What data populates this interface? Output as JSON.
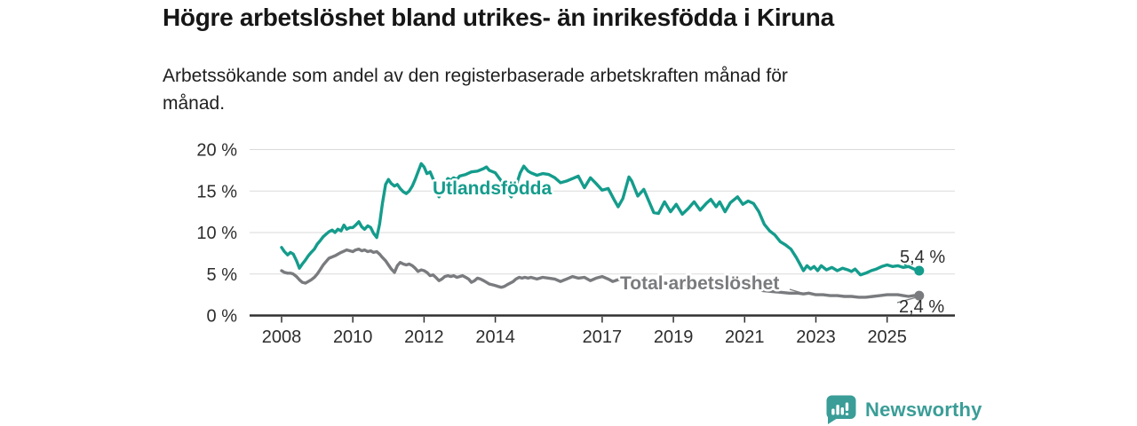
{
  "chart_data": {
    "type": "line",
    "title": "Högre arbetslöshet bland utrikes- än inrikesfödda i Kiruna",
    "subtitle_lines": [
      "Arbetssökande som andel av den registerbaserade arbetskraften månad för",
      "månad."
    ],
    "unit": "%",
    "x_range": [
      2008,
      2025.92
    ],
    "ylim": [
      0,
      20
    ],
    "grid": "horizontal-gridlines",
    "legend": "inline-labels-on-lines",
    "y_ticks": [
      {
        "value": 0,
        "label": "0 %"
      },
      {
        "value": 5,
        "label": "5 %"
      },
      {
        "value": 10,
        "label": "10 %"
      },
      {
        "value": 15,
        "label": "15 %"
      },
      {
        "value": 20,
        "label": "20 %"
      }
    ],
    "x_ticks": [
      {
        "value": 2008,
        "label": "2008"
      },
      {
        "value": 2010,
        "label": "2010"
      },
      {
        "value": 2012,
        "label": "2012"
      },
      {
        "value": 2014,
        "label": "2014"
      },
      {
        "value": 2017,
        "label": "2017"
      },
      {
        "value": 2019,
        "label": "2019"
      },
      {
        "value": 2021,
        "label": "2021"
      },
      {
        "value": 2023,
        "label": "2023"
      },
      {
        "value": 2025,
        "label": "2025"
      }
    ],
    "series": [
      {
        "name": "Utlandsfödda",
        "color": "#149c8c",
        "end_label": "5,4 %",
        "end_value": 5.4,
        "points": [
          [
            2008.0,
            8.2
          ],
          [
            2008.08,
            7.7
          ],
          [
            2008.17,
            7.3
          ],
          [
            2008.25,
            7.6
          ],
          [
            2008.33,
            7.4
          ],
          [
            2008.42,
            6.6
          ],
          [
            2008.5,
            5.7
          ],
          [
            2008.58,
            6.2
          ],
          [
            2008.67,
            6.7
          ],
          [
            2008.75,
            7.2
          ],
          [
            2008.83,
            7.6
          ],
          [
            2008.92,
            8.0
          ],
          [
            2009.0,
            8.6
          ],
          [
            2009.08,
            9.0
          ],
          [
            2009.17,
            9.5
          ],
          [
            2009.25,
            9.8
          ],
          [
            2009.33,
            10.1
          ],
          [
            2009.42,
            10.3
          ],
          [
            2009.5,
            10.0
          ],
          [
            2009.58,
            10.4
          ],
          [
            2009.67,
            10.2
          ],
          [
            2009.75,
            10.9
          ],
          [
            2009.83,
            10.4
          ],
          [
            2009.92,
            10.6
          ],
          [
            2010.0,
            10.6
          ],
          [
            2010.08,
            10.9
          ],
          [
            2010.17,
            11.3
          ],
          [
            2010.25,
            10.7
          ],
          [
            2010.33,
            10.4
          ],
          [
            2010.42,
            10.8
          ],
          [
            2010.5,
            10.6
          ],
          [
            2010.58,
            9.9
          ],
          [
            2010.67,
            9.4
          ],
          [
            2010.75,
            11.0
          ],
          [
            2010.83,
            13.5
          ],
          [
            2010.92,
            15.8
          ],
          [
            2011.0,
            16.4
          ],
          [
            2011.08,
            15.9
          ],
          [
            2011.17,
            15.6
          ],
          [
            2011.25,
            15.8
          ],
          [
            2011.33,
            15.3
          ],
          [
            2011.42,
            14.9
          ],
          [
            2011.5,
            14.7
          ],
          [
            2011.58,
            15.0
          ],
          [
            2011.67,
            15.6
          ],
          [
            2011.75,
            16.4
          ],
          [
            2011.83,
            17.3
          ],
          [
            2011.92,
            18.3
          ],
          [
            2012.0,
            17.9
          ],
          [
            2012.08,
            17.1
          ],
          [
            2012.17,
            17.3
          ],
          [
            2012.25,
            16.5
          ],
          [
            2012.33,
            15.3
          ],
          [
            2012.42,
            14.3
          ],
          [
            2012.5,
            15.0
          ],
          [
            2012.58,
            16.0
          ],
          [
            2012.67,
            16.5
          ],
          [
            2012.75,
            16.3
          ],
          [
            2012.83,
            16.6
          ],
          [
            2012.92,
            16.4
          ],
          [
            2013.0,
            16.8
          ],
          [
            2013.17,
            17.0
          ],
          [
            2013.33,
            17.3
          ],
          [
            2013.5,
            17.4
          ],
          [
            2013.67,
            17.7
          ],
          [
            2013.75,
            17.9
          ],
          [
            2013.83,
            17.5
          ],
          [
            2014.0,
            17.2
          ],
          [
            2014.17,
            16.2
          ],
          [
            2014.33,
            15.0
          ],
          [
            2014.45,
            14.3
          ],
          [
            2014.58,
            15.6
          ],
          [
            2014.7,
            17.2
          ],
          [
            2014.8,
            18.0
          ],
          [
            2014.92,
            17.4
          ],
          [
            2015.0,
            17.2
          ],
          [
            2015.17,
            16.9
          ],
          [
            2015.33,
            17.1
          ],
          [
            2015.5,
            17.0
          ],
          [
            2015.67,
            16.6
          ],
          [
            2015.83,
            16.0
          ],
          [
            2016.0,
            16.2
          ],
          [
            2016.17,
            16.5
          ],
          [
            2016.33,
            16.8
          ],
          [
            2016.5,
            15.4
          ],
          [
            2016.67,
            16.6
          ],
          [
            2016.83,
            15.9
          ],
          [
            2017.0,
            15.1
          ],
          [
            2017.17,
            15.3
          ],
          [
            2017.33,
            14.0
          ],
          [
            2017.45,
            13.1
          ],
          [
            2017.58,
            14.1
          ],
          [
            2017.75,
            16.7
          ],
          [
            2017.83,
            16.2
          ],
          [
            2018.0,
            14.4
          ],
          [
            2018.17,
            15.2
          ],
          [
            2018.33,
            13.6
          ],
          [
            2018.45,
            12.4
          ],
          [
            2018.58,
            12.3
          ],
          [
            2018.75,
            13.7
          ],
          [
            2018.92,
            12.5
          ],
          [
            2019.08,
            13.4
          ],
          [
            2019.25,
            12.2
          ],
          [
            2019.42,
            12.9
          ],
          [
            2019.58,
            13.7
          ],
          [
            2019.75,
            12.7
          ],
          [
            2019.92,
            13.5
          ],
          [
            2020.05,
            14.0
          ],
          [
            2020.2,
            13.1
          ],
          [
            2020.3,
            13.7
          ],
          [
            2020.45,
            12.5
          ],
          [
            2020.6,
            13.6
          ],
          [
            2020.8,
            14.3
          ],
          [
            2020.95,
            13.4
          ],
          [
            2021.1,
            13.8
          ],
          [
            2021.25,
            13.5
          ],
          [
            2021.4,
            12.5
          ],
          [
            2021.55,
            11.0
          ],
          [
            2021.7,
            10.2
          ],
          [
            2021.85,
            9.7
          ],
          [
            2022.0,
            8.9
          ],
          [
            2022.15,
            8.5
          ],
          [
            2022.3,
            8.0
          ],
          [
            2022.45,
            7.0
          ],
          [
            2022.55,
            6.2
          ],
          [
            2022.65,
            5.4
          ],
          [
            2022.75,
            6.0
          ],
          [
            2022.85,
            5.6
          ],
          [
            2022.95,
            5.9
          ],
          [
            2023.05,
            5.4
          ],
          [
            2023.15,
            6.0
          ],
          [
            2023.3,
            5.5
          ],
          [
            2023.45,
            5.8
          ],
          [
            2023.6,
            5.4
          ],
          [
            2023.75,
            5.7
          ],
          [
            2023.9,
            5.5
          ],
          [
            2024.0,
            5.3
          ],
          [
            2024.1,
            5.6
          ],
          [
            2024.25,
            4.9
          ],
          [
            2024.4,
            5.1
          ],
          [
            2024.55,
            5.4
          ],
          [
            2024.7,
            5.6
          ],
          [
            2024.85,
            5.9
          ],
          [
            2025.0,
            6.1
          ],
          [
            2025.15,
            5.9
          ],
          [
            2025.3,
            6.0
          ],
          [
            2025.45,
            5.8
          ],
          [
            2025.6,
            5.9
          ],
          [
            2025.75,
            5.6
          ],
          [
            2025.9,
            5.4
          ]
        ]
      },
      {
        "name": "Total arbetslöshet",
        "color": "#797b7e",
        "end_label": "2,4 %",
        "end_value": 2.4,
        "points": [
          [
            2008.0,
            5.4
          ],
          [
            2008.08,
            5.2
          ],
          [
            2008.17,
            5.1
          ],
          [
            2008.25,
            5.1
          ],
          [
            2008.33,
            5.0
          ],
          [
            2008.42,
            4.7
          ],
          [
            2008.5,
            4.3
          ],
          [
            2008.58,
            4.0
          ],
          [
            2008.67,
            3.9
          ],
          [
            2008.75,
            4.1
          ],
          [
            2008.83,
            4.3
          ],
          [
            2008.92,
            4.6
          ],
          [
            2009.0,
            5.0
          ],
          [
            2009.08,
            5.5
          ],
          [
            2009.17,
            6.1
          ],
          [
            2009.25,
            6.5
          ],
          [
            2009.33,
            6.9
          ],
          [
            2009.5,
            7.2
          ],
          [
            2009.67,
            7.6
          ],
          [
            2009.83,
            7.9
          ],
          [
            2009.92,
            7.8
          ],
          [
            2010.0,
            7.7
          ],
          [
            2010.08,
            7.9
          ],
          [
            2010.17,
            8.0
          ],
          [
            2010.25,
            7.8
          ],
          [
            2010.33,
            7.9
          ],
          [
            2010.42,
            7.7
          ],
          [
            2010.5,
            7.8
          ],
          [
            2010.58,
            7.6
          ],
          [
            2010.67,
            7.7
          ],
          [
            2010.75,
            7.4
          ],
          [
            2010.83,
            7.0
          ],
          [
            2010.92,
            6.6
          ],
          [
            2011.0,
            6.1
          ],
          [
            2011.08,
            5.6
          ],
          [
            2011.17,
            5.2
          ],
          [
            2011.25,
            6.0
          ],
          [
            2011.33,
            6.4
          ],
          [
            2011.42,
            6.2
          ],
          [
            2011.5,
            6.1
          ],
          [
            2011.58,
            6.2
          ],
          [
            2011.67,
            6.0
          ],
          [
            2011.75,
            5.7
          ],
          [
            2011.83,
            5.3
          ],
          [
            2011.92,
            5.5
          ],
          [
            2012.0,
            5.4
          ],
          [
            2012.08,
            5.2
          ],
          [
            2012.17,
            4.8
          ],
          [
            2012.25,
            4.9
          ],
          [
            2012.33,
            4.6
          ],
          [
            2012.42,
            4.2
          ],
          [
            2012.5,
            4.4
          ],
          [
            2012.58,
            4.7
          ],
          [
            2012.67,
            4.8
          ],
          [
            2012.75,
            4.7
          ],
          [
            2012.83,
            4.8
          ],
          [
            2012.92,
            4.6
          ],
          [
            2013.0,
            4.7
          ],
          [
            2013.08,
            4.8
          ],
          [
            2013.17,
            4.6
          ],
          [
            2013.25,
            4.4
          ],
          [
            2013.33,
            4.0
          ],
          [
            2013.42,
            4.2
          ],
          [
            2013.5,
            4.5
          ],
          [
            2013.58,
            4.4
          ],
          [
            2013.67,
            4.2
          ],
          [
            2013.75,
            4.0
          ],
          [
            2013.83,
            3.8
          ],
          [
            2013.92,
            3.7
          ],
          [
            2014.0,
            3.6
          ],
          [
            2014.08,
            3.5
          ],
          [
            2014.17,
            3.4
          ],
          [
            2014.25,
            3.5
          ],
          [
            2014.33,
            3.7
          ],
          [
            2014.42,
            3.9
          ],
          [
            2014.5,
            4.1
          ],
          [
            2014.58,
            4.4
          ],
          [
            2014.67,
            4.6
          ],
          [
            2014.75,
            4.5
          ],
          [
            2014.83,
            4.6
          ],
          [
            2014.92,
            4.5
          ],
          [
            2015.0,
            4.6
          ],
          [
            2015.17,
            4.4
          ],
          [
            2015.33,
            4.6
          ],
          [
            2015.5,
            4.5
          ],
          [
            2015.67,
            4.4
          ],
          [
            2015.83,
            4.1
          ],
          [
            2016.0,
            4.4
          ],
          [
            2016.17,
            4.7
          ],
          [
            2016.33,
            4.5
          ],
          [
            2016.5,
            4.6
          ],
          [
            2016.67,
            4.2
          ],
          [
            2016.83,
            4.5
          ],
          [
            2017.0,
            4.7
          ],
          [
            2017.17,
            4.4
          ],
          [
            2017.3,
            4.1
          ],
          [
            2017.5,
            4.4
          ],
          [
            2017.67,
            4.6
          ],
          [
            2017.83,
            4.5
          ],
          [
            2018.0,
            4.4
          ],
          [
            2018.25,
            4.2
          ],
          [
            2018.5,
            4.0
          ],
          [
            2018.75,
            3.9
          ],
          [
            2019.0,
            3.8
          ],
          [
            2019.25,
            3.7
          ],
          [
            2019.5,
            3.6
          ],
          [
            2019.75,
            3.5
          ],
          [
            2020.0,
            3.5
          ],
          [
            2020.25,
            3.6
          ],
          [
            2020.5,
            3.7
          ],
          [
            2020.75,
            3.6
          ],
          [
            2021.0,
            3.5
          ],
          [
            2021.25,
            3.3
          ],
          [
            2021.5,
            3.0
          ],
          [
            2021.75,
            2.9
          ],
          [
            2022.0,
            2.8
          ],
          [
            2022.25,
            2.7
          ],
          [
            2022.5,
            2.7
          ],
          [
            2022.65,
            2.6
          ],
          [
            2022.8,
            2.7
          ],
          [
            2023.0,
            2.5
          ],
          [
            2023.2,
            2.5
          ],
          [
            2023.4,
            2.4
          ],
          [
            2023.6,
            2.4
          ],
          [
            2023.8,
            2.3
          ],
          [
            2024.0,
            2.3
          ],
          [
            2024.2,
            2.2
          ],
          [
            2024.4,
            2.2
          ],
          [
            2024.6,
            2.3
          ],
          [
            2024.8,
            2.4
          ],
          [
            2025.0,
            2.5
          ],
          [
            2025.15,
            2.5
          ],
          [
            2025.3,
            2.5
          ],
          [
            2025.45,
            2.4
          ],
          [
            2025.6,
            2.3
          ],
          [
            2025.75,
            2.4
          ],
          [
            2025.9,
            2.4
          ]
        ]
      }
    ]
  },
  "footer": {
    "brand": "Newsworthy",
    "brand_color": "#3a9d97",
    "logo_icon": "bar-chart-speech-bubble-icon"
  }
}
